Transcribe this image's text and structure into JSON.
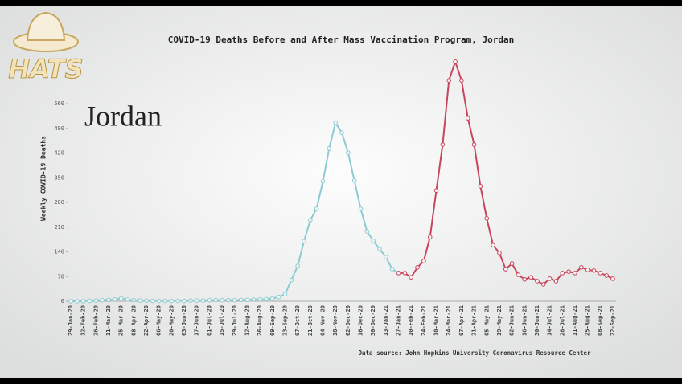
{
  "logo": "HATS",
  "chart_data": {
    "type": "line",
    "title": "COVID-19 Deaths Before and After Mass Vaccination Program, Jordan",
    "annotation": "Jordan",
    "ylabel": "Weekly COVID-19 Deaths",
    "source": "Data source: John Hopkins University Coronavirus Resource Center",
    "categories": [
      "29-Jan-20",
      null,
      "12-Feb-20",
      null,
      "26-Feb-20",
      null,
      "11-Mar-20",
      null,
      "25-Mar-20",
      null,
      "08-Apr-20",
      null,
      "22-Apr-20",
      null,
      "06-May-20",
      null,
      "20-May-20",
      null,
      "03-Jun-20",
      null,
      "17-Jun-20",
      null,
      "01-Jul-20",
      null,
      "15-Jul-20",
      null,
      "29-Jul-20",
      null,
      "12-Aug-20",
      null,
      "26-Aug-20",
      null,
      "09-Sep-20",
      null,
      "23-Sep-20",
      null,
      "07-Oct-20",
      null,
      "21-Oct-20",
      null,
      "04-Nov-20",
      null,
      "18-Nov-20",
      null,
      "02-Dec-20",
      null,
      "16-Dec-20",
      null,
      "30-Dec-20",
      null,
      "13-Jan-21",
      null,
      "27-Jan-21",
      null,
      "10-Feb-21",
      null,
      "24-Feb-21",
      null,
      "10-Mar-21",
      null,
      "24-Mar-21",
      null,
      "07-Apr-21",
      null,
      "21-Apr-21",
      null,
      "05-May-21",
      null,
      "19-May-21",
      null,
      "02-Jun-21",
      null,
      "16-Jun-21",
      null,
      "30-Jun-21",
      null,
      "14-Jul-21",
      null,
      "28-Jul-21",
      null,
      "11-Aug-21",
      null,
      "25-Aug-21",
      null,
      "08-Sep-21",
      null,
      "22-Sep-21"
    ],
    "series": [
      {
        "color": "#8ccbd3",
        "values": [
          0,
          0,
          0,
          1,
          2,
          3,
          4,
          5,
          8,
          5,
          3,
          2,
          2,
          1,
          1,
          1,
          1,
          1,
          1,
          2,
          2,
          2,
          3,
          3,
          3,
          3,
          3,
          4,
          4,
          5,
          5,
          6,
          8,
          12,
          20,
          60,
          100,
          170,
          230,
          262,
          340,
          433,
          506,
          478,
          421,
          342,
          262,
          198,
          171,
          148,
          125,
          91,
          80,
          null,
          null,
          null,
          null,
          null,
          null,
          null,
          null,
          null,
          null,
          null,
          null,
          null,
          null,
          null,
          null,
          null,
          null,
          null,
          null,
          null,
          null,
          null,
          null,
          null,
          null,
          null,
          null,
          null,
          null,
          null,
          null,
          null,
          null
        ]
      },
      {
        "color": "#c9455c",
        "values": [
          null,
          null,
          null,
          null,
          null,
          null,
          null,
          null,
          null,
          null,
          null,
          null,
          null,
          null,
          null,
          null,
          null,
          null,
          null,
          null,
          null,
          null,
          null,
          null,
          null,
          null,
          null,
          null,
          null,
          null,
          null,
          null,
          null,
          null,
          null,
          null,
          null,
          null,
          null,
          null,
          null,
          null,
          null,
          null,
          null,
          null,
          null,
          null,
          null,
          null,
          null,
          null,
          80,
          80,
          68,
          96,
          114,
          182,
          314,
          444,
          626,
          679,
          626,
          519,
          444,
          326,
          235,
          159,
          137,
          91,
          107,
          75,
          62,
          68,
          57,
          48,
          64,
          57,
          80,
          84,
          80,
          96,
          89,
          87,
          80,
          73,
          64
        ]
      }
    ],
    "ylim": [
      0,
      690
    ],
    "yticks": [
      0,
      70,
      140,
      210,
      280,
      350,
      420,
      490,
      560
    ]
  }
}
